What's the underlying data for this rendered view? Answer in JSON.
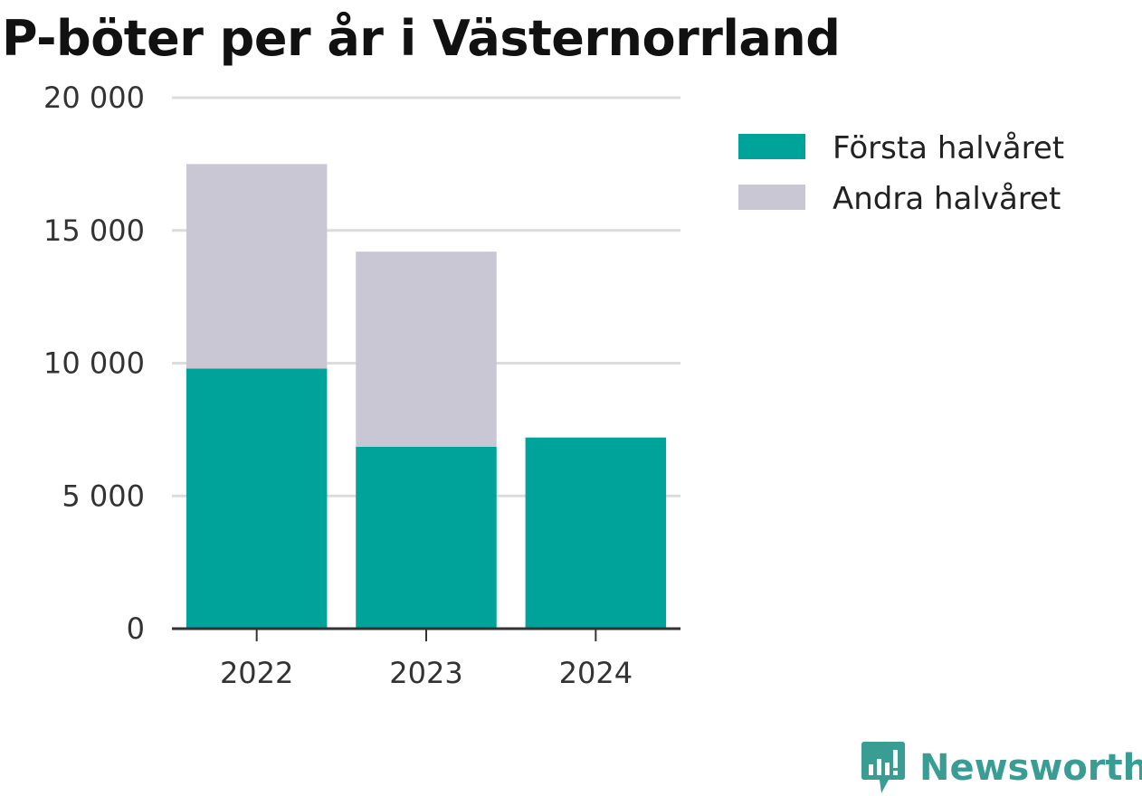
{
  "chart_data": {
    "type": "bar",
    "stacked": true,
    "title": "P-böter per år i Västernorrland",
    "xlabel": "",
    "ylabel": "",
    "categories": [
      "2022",
      "2023",
      "2024"
    ],
    "series": [
      {
        "name": "Första halvåret",
        "color": "#00a39a",
        "values": [
          9800,
          6850,
          7200
        ]
      },
      {
        "name": "Andra halvåret",
        "color": "#c8c7d3",
        "values": [
          7700,
          7350,
          0
        ]
      }
    ],
    "ylim": [
      0,
      20000
    ],
    "yticks": [
      0,
      5000,
      10000,
      15000,
      20000
    ],
    "ytick_labels": [
      "0",
      "5 000",
      "10 000",
      "15 000",
      "20 000"
    ],
    "grid": true,
    "legend_position": "right"
  },
  "brand": {
    "name": "Newsworthy",
    "icon": "newsworthy-logo-icon",
    "color": "#3a9d93"
  }
}
